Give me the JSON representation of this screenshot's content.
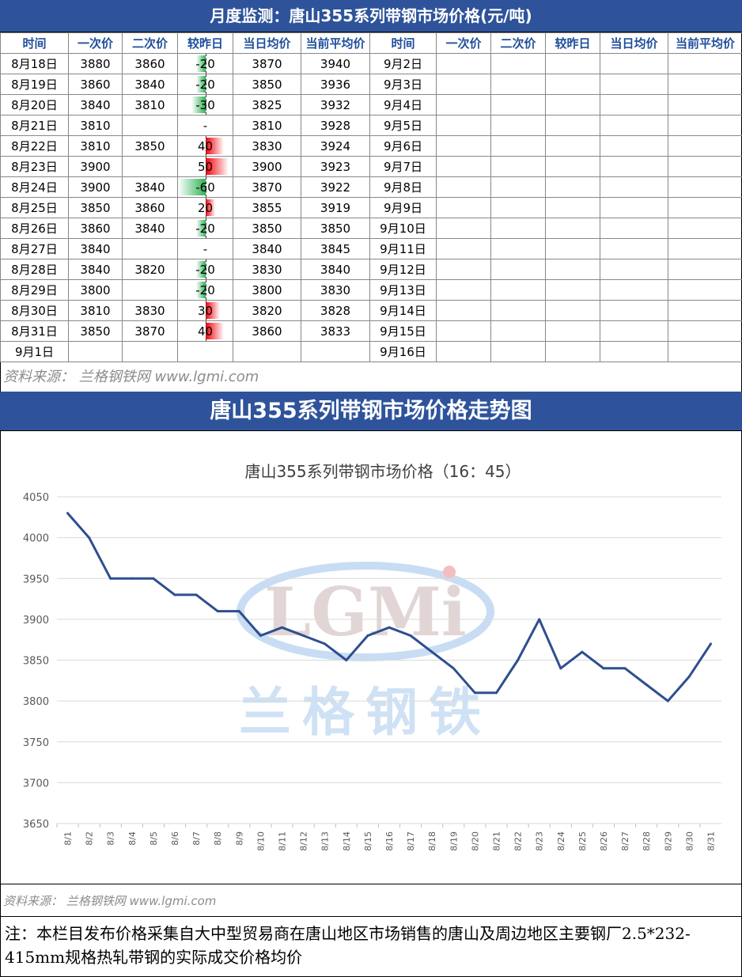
{
  "header": {
    "title": "月度监测：唐山355系列带钢市场价格(元/吨)"
  },
  "table": {
    "columns": [
      "时间",
      "一次价",
      "二次价",
      "较昨日",
      "当日均价",
      "当前平均价",
      "时间",
      "一次价",
      "二次价",
      "较昨日",
      "当日均价",
      "当前平均价"
    ],
    "rows": [
      {
        "date": "8月18日",
        "p1": "3880",
        "p2": "3860",
        "change": "-20",
        "change_value": -20,
        "avg": "3870",
        "cum": "3940",
        "date2": "9月2日"
      },
      {
        "date": "8月19日",
        "p1": "3860",
        "p2": "3840",
        "change": "-20",
        "change_value": -20,
        "avg": "3850",
        "cum": "3936",
        "date2": "9月3日"
      },
      {
        "date": "8月20日",
        "p1": "3840",
        "p2": "3810",
        "change": "-30",
        "change_value": -30,
        "avg": "3825",
        "cum": "3932",
        "date2": "9月4日"
      },
      {
        "date": "8月21日",
        "p1": "3810",
        "p2": "",
        "change": "-",
        "change_value": 0,
        "avg": "3810",
        "cum": "3928",
        "date2": "9月5日"
      },
      {
        "date": "8月22日",
        "p1": "3810",
        "p2": "3850",
        "change": "40",
        "change_value": 40,
        "avg": "3830",
        "cum": "3924",
        "date2": "9月6日"
      },
      {
        "date": "8月23日",
        "p1": "3900",
        "p2": "",
        "change": "50",
        "change_value": 50,
        "avg": "3900",
        "cum": "3923",
        "date2": "9月7日"
      },
      {
        "date": "8月24日",
        "p1": "3900",
        "p2": "3840",
        "change": "-60",
        "change_value": -60,
        "avg": "3870",
        "cum": "3922",
        "date2": "9月8日"
      },
      {
        "date": "8月25日",
        "p1": "3850",
        "p2": "3860",
        "change": "20",
        "change_value": 20,
        "avg": "3855",
        "cum": "3919",
        "date2": "9月9日"
      },
      {
        "date": "8月26日",
        "p1": "3860",
        "p2": "3840",
        "change": "-20",
        "change_value": -20,
        "avg": "3850",
        "cum": "3850",
        "date2": "9月10日"
      },
      {
        "date": "8月27日",
        "p1": "3840",
        "p2": "",
        "change": "-",
        "change_value": 0,
        "avg": "3840",
        "cum": "3845",
        "date2": "9月11日"
      },
      {
        "date": "8月28日",
        "p1": "3840",
        "p2": "3820",
        "change": "-20",
        "change_value": -20,
        "avg": "3830",
        "cum": "3840",
        "date2": "9月12日"
      },
      {
        "date": "8月29日",
        "p1": "3800",
        "p2": "",
        "change": "-20",
        "change_value": -20,
        "avg": "3800",
        "cum": "3830",
        "date2": "9月13日"
      },
      {
        "date": "8月30日",
        "p1": "3810",
        "p2": "3830",
        "change": "30",
        "change_value": 30,
        "avg": "3820",
        "cum": "3828",
        "date2": "9月14日"
      },
      {
        "date": "8月31日",
        "p1": "3850",
        "p2": "3870",
        "change": "40",
        "change_value": 40,
        "avg": "3860",
        "cum": "3833",
        "date2": "9月15日"
      },
      {
        "date": "9月1日",
        "p1": "",
        "p2": "",
        "change": "",
        "change_value": 0,
        "avg": "",
        "cum": "",
        "date2": "9月16日"
      }
    ]
  },
  "source_top": "资料来源： 兰格钢铁网 www.lgmi.com",
  "chart_section_title": "唐山355系列带钢市场价格走势图",
  "chart_data": {
    "type": "line",
    "title": "唐山355系列带钢市场价格（16：45）",
    "xlabel": "",
    "ylabel": "",
    "x": [
      "8/1",
      "8/2",
      "8/3",
      "8/4",
      "8/5",
      "8/6",
      "8/7",
      "8/8",
      "8/9",
      "8/10",
      "8/11",
      "8/12",
      "8/13",
      "8/14",
      "8/15",
      "8/16",
      "8/17",
      "8/18",
      "8/19",
      "8/20",
      "8/21",
      "8/22",
      "8/23",
      "8/24",
      "8/25",
      "8/26",
      "8/27",
      "8/28",
      "8/29",
      "8/30",
      "8/31"
    ],
    "series": [
      {
        "values": [
          4030,
          4000,
          3950,
          3950,
          3950,
          3930,
          3930,
          3910,
          3910,
          3880,
          3890,
          3880,
          3870,
          3850,
          3880,
          3890,
          3880,
          3860,
          3840,
          3810,
          3810,
          3850,
          3900,
          3840,
          3860,
          3840,
          3840,
          3820,
          3800,
          3830,
          3870
        ],
        "color": "#2e4f8f"
      }
    ],
    "ylim": [
      3650,
      4050
    ],
    "yticks": [
      3650,
      3700,
      3750,
      3800,
      3850,
      3900,
      3950,
      4000,
      4050
    ],
    "grid": true,
    "legend": "none",
    "watermark": {
      "text_latin": "LGMi",
      "text_cn": "兰格钢铁"
    }
  },
  "source_bottom": "资料来源： 兰格钢铁网 www.lgmi.com",
  "note": "注：本栏目发布价格采集自大中型贸易商在唐山地区市场销售的唐山及周边地区主要钢厂2.5*232-415mm规格热轧带钢的实际成交价格均价"
}
